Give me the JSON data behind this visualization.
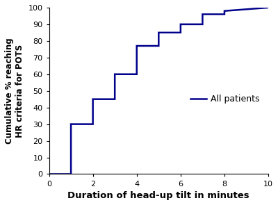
{
  "x": [
    0,
    1,
    1,
    2,
    2,
    3,
    3,
    4,
    4,
    5,
    5,
    6,
    6,
    7,
    7,
    8,
    8,
    10
  ],
  "y": [
    0,
    0,
    30,
    30,
    45,
    45,
    60,
    60,
    77,
    77,
    85,
    85,
    90,
    90,
    96,
    96,
    98,
    100
  ],
  "line_color": "#00008B",
  "line_width": 1.8,
  "xlabel": "Duration of head-up tilt in minutes",
  "ylabel": "Cumulative % reaching\nHR criteria for POTS",
  "xlim": [
    0,
    10
  ],
  "ylim": [
    0,
    100
  ],
  "xticks": [
    0,
    2,
    4,
    6,
    8,
    10
  ],
  "yticks": [
    0,
    10,
    20,
    30,
    40,
    50,
    60,
    70,
    80,
    90,
    100
  ],
  "legend_label": "All patients",
  "background_color": "#ffffff",
  "xlabel_fontsize": 9.5,
  "ylabel_fontsize": 8.5,
  "tick_fontsize": 8,
  "legend_fontsize": 9
}
